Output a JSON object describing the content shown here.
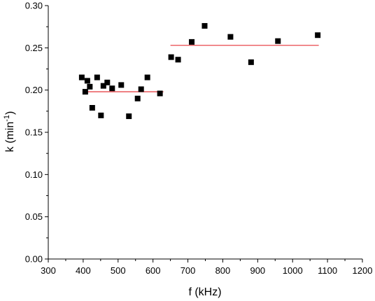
{
  "chart_data": {
    "type": "scatter",
    "xlabel": "f (kHz)",
    "ylabel": {
      "base": "k (min",
      "sup": "-1",
      "tail": ")"
    },
    "xlim": [
      300,
      1200
    ],
    "ylim": [
      0.0,
      0.3
    ],
    "x_ticks": [
      "300",
      "400",
      "500",
      "600",
      "700",
      "800",
      "900",
      "1000",
      "1100",
      "1200"
    ],
    "y_ticks": [
      "0.00",
      "0.05",
      "0.10",
      "0.15",
      "0.20",
      "0.25",
      "0.30"
    ],
    "grid": false,
    "marker_color": "#000000",
    "fit_color": "#e8474b",
    "series": [
      {
        "marker": "square",
        "x": [
          396,
          406,
          412,
          419,
          426,
          440,
          451,
          458,
          469,
          483,
          509,
          531,
          556,
          566,
          584,
          620,
          652,
          672,
          711,
          748,
          822,
          881,
          958,
          1072
        ],
        "y": [
          0.215,
          0.198,
          0.211,
          0.204,
          0.179,
          0.215,
          0.17,
          0.205,
          0.209,
          0.202,
          0.206,
          0.169,
          0.19,
          0.201,
          0.215,
          0.196,
          0.239,
          0.236,
          0.257,
          0.276,
          0.263,
          0.233,
          0.258,
          0.265
        ]
      }
    ],
    "fit_lines": [
      {
        "x": [
          407,
          630
        ],
        "y": [
          0.198,
          0.198
        ]
      },
      {
        "x": [
          650,
          1075
        ],
        "y": [
          0.253,
          0.253
        ]
      }
    ]
  }
}
